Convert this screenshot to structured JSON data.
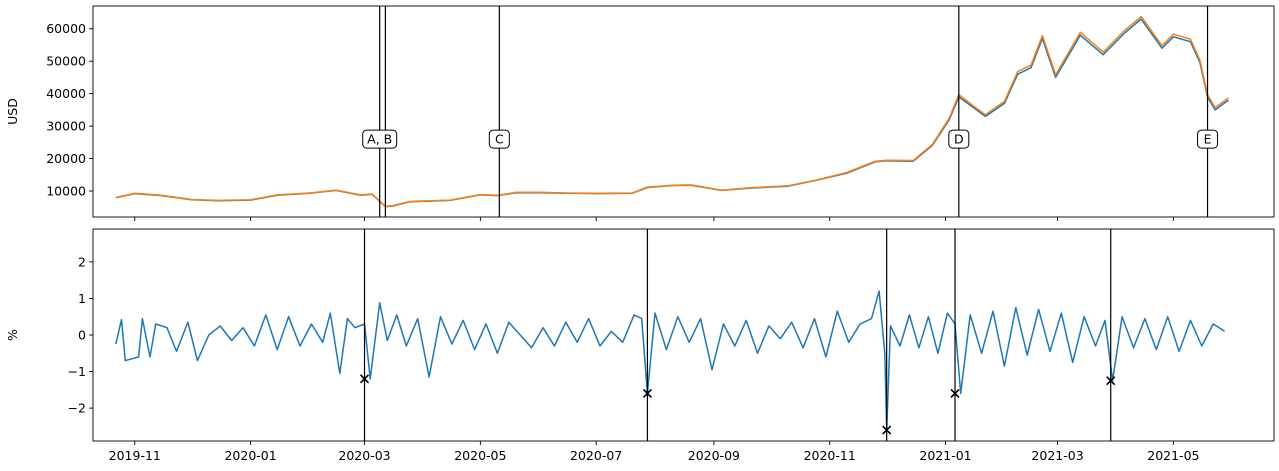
{
  "chart_data": [
    {
      "type": "line",
      "title": "",
      "xlabel": "",
      "ylabel": "USD",
      "ylim": [
        2000,
        67000
      ],
      "yticks": [
        10000,
        20000,
        30000,
        40000,
        50000,
        60000
      ],
      "ytick_labels": [
        "10000",
        "20000",
        "30000",
        "40000",
        "50000",
        "60000"
      ],
      "xlim": [
        "2019-10-10",
        "2021-06-23"
      ],
      "grid": false,
      "legend": null,
      "series": [
        {
          "color": "#1f77b4",
          "x": [
            "2019-10-22",
            "2019-11-01",
            "2019-11-15",
            "2019-12-01",
            "2019-12-15",
            "2020-01-01",
            "2020-01-15",
            "2020-02-01",
            "2020-02-15",
            "2020-02-28",
            "2020-03-05",
            "2020-03-12",
            "2020-03-16",
            "2020-03-25",
            "2020-04-15",
            "2020-05-01",
            "2020-05-10",
            "2020-05-20",
            "2020-06-01",
            "2020-06-15",
            "2020-07-01",
            "2020-07-20",
            "2020-07-28",
            "2020-08-10",
            "2020-08-20",
            "2020-09-05",
            "2020-09-20",
            "2020-10-10",
            "2020-10-25",
            "2020-11-10",
            "2020-11-25",
            "2020-12-01",
            "2020-12-15",
            "2020-12-25",
            "2021-01-03",
            "2021-01-08",
            "2021-01-15",
            "2021-01-22",
            "2021-02-01",
            "2021-02-08",
            "2021-02-15",
            "2021-02-21",
            "2021-02-28",
            "2021-03-13",
            "2021-03-25",
            "2021-04-05",
            "2021-04-14",
            "2021-04-25",
            "2021-05-01",
            "2021-05-10",
            "2021-05-15",
            "2021-05-19",
            "2021-05-23",
            "2021-05-30"
          ],
          "values": [
            7900,
            9200,
            8600,
            7300,
            7000,
            7200,
            8700,
            9300,
            10200,
            8700,
            9000,
            5200,
            5400,
            6700,
            7100,
            8800,
            8600,
            9500,
            9500,
            9300,
            9200,
            9300,
            11100,
            11700,
            11800,
            10200,
            10900,
            11500,
            13300,
            15500,
            19000,
            19300,
            19200,
            24000,
            32000,
            39000,
            36000,
            33000,
            37000,
            46000,
            48000,
            57000,
            45000,
            58000,
            52000,
            58500,
            63000,
            54000,
            57500,
            56000,
            49500,
            39000,
            35000,
            38000
          ]
        },
        {
          "color": "#ff7f0e",
          "x": [
            "2019-10-22",
            "2019-11-01",
            "2019-11-15",
            "2019-12-01",
            "2019-12-15",
            "2020-01-01",
            "2020-01-15",
            "2020-02-01",
            "2020-02-15",
            "2020-02-28",
            "2020-03-05",
            "2020-03-12",
            "2020-03-16",
            "2020-03-25",
            "2020-04-15",
            "2020-05-01",
            "2020-05-10",
            "2020-05-20",
            "2020-06-01",
            "2020-06-15",
            "2020-07-01",
            "2020-07-20",
            "2020-07-28",
            "2020-08-10",
            "2020-08-20",
            "2020-09-05",
            "2020-09-20",
            "2020-10-10",
            "2020-10-25",
            "2020-11-10",
            "2020-11-25",
            "2020-12-01",
            "2020-12-15",
            "2020-12-25",
            "2021-01-03",
            "2021-01-08",
            "2021-01-15",
            "2021-01-22",
            "2021-02-01",
            "2021-02-08",
            "2021-02-15",
            "2021-02-21",
            "2021-02-28",
            "2021-03-13",
            "2021-03-25",
            "2021-04-05",
            "2021-04-14",
            "2021-04-25",
            "2021-05-01",
            "2021-05-10",
            "2021-05-15",
            "2021-05-19",
            "2021-05-23",
            "2021-05-30"
          ],
          "values": [
            8000,
            9300,
            8700,
            7400,
            7100,
            7300,
            8800,
            9400,
            10300,
            8800,
            9100,
            5300,
            5500,
            6800,
            7200,
            8900,
            8700,
            9600,
            9600,
            9400,
            9300,
            9400,
            11200,
            11800,
            11900,
            10300,
            11000,
            11600,
            13400,
            15700,
            19200,
            19500,
            19400,
            24300,
            32500,
            39700,
            36500,
            33500,
            37600,
            46800,
            48800,
            57900,
            45800,
            58900,
            52800,
            59300,
            63800,
            54800,
            58300,
            56800,
            50200,
            39700,
            35700,
            38700
          ]
        }
      ],
      "events": [
        {
          "date": "2020-03-09",
          "label": "A, B"
        },
        {
          "date": "2020-03-12",
          "label": ""
        },
        {
          "date": "2020-05-11",
          "label": "C"
        },
        {
          "date": "2021-01-08",
          "label": "D"
        },
        {
          "date": "2021-05-19",
          "label": "E"
        }
      ],
      "event_label_y": 26000
    },
    {
      "type": "line",
      "title": "",
      "xlabel": "",
      "ylabel": "%",
      "ylim": [
        -2.9,
        2.9
      ],
      "yticks": [
        -2,
        -1,
        0,
        1,
        2
      ],
      "ytick_labels": [
        "−2",
        "−1",
        "0",
        "1",
        "2"
      ],
      "xlim": [
        "2019-10-10",
        "2021-06-23"
      ],
      "xticks": [
        "2019-11-01",
        "2020-01-01",
        "2020-03-01",
        "2020-05-01",
        "2020-07-01",
        "2020-09-01",
        "2020-11-01",
        "2021-01-01",
        "2021-03-01",
        "2021-05-01"
      ],
      "xtick_labels": [
        "2019-11",
        "2020-01",
        "2020-03",
        "2020-05",
        "2020-07",
        "2020-09",
        "2020-11",
        "2021-01",
        "2021-03",
        "2021-05"
      ],
      "grid": false,
      "legend": null,
      "series": [
        {
          "color": "#1f77b4",
          "x": [
            "2019-10-22",
            "2019-10-25",
            "2019-10-27",
            "2019-11-03",
            "2019-11-05",
            "2019-11-09",
            "2019-11-12",
            "2019-11-18",
            "2019-11-23",
            "2019-11-29",
            "2019-12-04",
            "2019-12-10",
            "2019-12-16",
            "2019-12-22",
            "2019-12-28",
            "2020-01-03",
            "2020-01-09",
            "2020-01-15",
            "2020-01-21",
            "2020-01-27",
            "2020-02-02",
            "2020-02-08",
            "2020-02-12",
            "2020-02-17",
            "2020-02-21",
            "2020-02-25",
            "2020-03-01",
            "2020-03-04",
            "2020-03-09",
            "2020-03-13",
            "2020-03-18",
            "2020-03-23",
            "2020-03-29",
            "2020-04-04",
            "2020-04-10",
            "2020-04-16",
            "2020-04-22",
            "2020-04-28",
            "2020-05-04",
            "2020-05-10",
            "2020-05-16",
            "2020-05-22",
            "2020-05-28",
            "2020-06-03",
            "2020-06-09",
            "2020-06-15",
            "2020-06-21",
            "2020-06-27",
            "2020-07-03",
            "2020-07-09",
            "2020-07-15",
            "2020-07-21",
            "2020-07-25",
            "2020-07-28",
            "2020-08-01",
            "2020-08-07",
            "2020-08-13",
            "2020-08-19",
            "2020-08-25",
            "2020-08-31",
            "2020-09-06",
            "2020-09-12",
            "2020-09-18",
            "2020-09-24",
            "2020-09-30",
            "2020-10-06",
            "2020-10-12",
            "2020-10-18",
            "2020-10-24",
            "2020-10-30",
            "2020-11-05",
            "2020-11-11",
            "2020-11-17",
            "2020-11-23",
            "2020-11-27",
            "2020-11-30",
            "2020-12-01",
            "2020-12-03",
            "2020-12-08",
            "2020-12-13",
            "2020-12-18",
            "2020-12-23",
            "2020-12-28",
            "2021-01-02",
            "2021-01-06",
            "2021-01-09",
            "2021-01-14",
            "2021-01-20",
            "2021-01-26",
            "2021-02-01",
            "2021-02-07",
            "2021-02-13",
            "2021-02-19",
            "2021-02-25",
            "2021-03-03",
            "2021-03-09",
            "2021-03-15",
            "2021-03-21",
            "2021-03-26",
            "2021-03-30",
            "2021-04-04",
            "2021-04-10",
            "2021-04-16",
            "2021-04-22",
            "2021-04-28",
            "2021-05-04",
            "2021-05-10",
            "2021-05-16",
            "2021-05-22",
            "2021-05-28"
          ],
          "values": [
            -0.25,
            0.42,
            -0.7,
            -0.6,
            0.45,
            -0.6,
            0.3,
            0.2,
            -0.45,
            0.35,
            -0.7,
            0.0,
            0.25,
            -0.15,
            0.2,
            -0.3,
            0.55,
            -0.4,
            0.5,
            -0.3,
            0.3,
            -0.2,
            0.6,
            -1.05,
            0.45,
            0.2,
            0.3,
            -1.2,
            0.88,
            -0.15,
            0.55,
            -0.3,
            0.45,
            -1.15,
            0.5,
            -0.25,
            0.4,
            -0.4,
            0.3,
            -0.5,
            0.35,
            0.0,
            -0.35,
            0.2,
            -0.3,
            0.35,
            -0.2,
            0.45,
            -0.3,
            0.1,
            -0.2,
            0.55,
            0.45,
            -1.6,
            0.6,
            -0.4,
            0.5,
            -0.2,
            0.45,
            -0.95,
            0.3,
            -0.3,
            0.4,
            -0.5,
            0.25,
            -0.1,
            0.35,
            -0.35,
            0.45,
            -0.6,
            0.65,
            -0.2,
            0.3,
            0.45,
            1.2,
            -0.5,
            -2.6,
            0.25,
            -0.3,
            0.55,
            -0.35,
            0.5,
            -0.5,
            0.6,
            0.3,
            -1.6,
            0.55,
            -0.5,
            0.65,
            -0.85,
            0.75,
            -0.55,
            0.7,
            -0.45,
            0.6,
            -0.75,
            0.5,
            -0.3,
            0.4,
            -1.25,
            0.5,
            -0.35,
            0.45,
            -0.4,
            0.5,
            -0.45,
            0.4,
            -0.3,
            0.3,
            0.1
          ]
        }
      ],
      "events": [
        {
          "date": "2020-03-01",
          "value": -1.2
        },
        {
          "date": "2020-07-28",
          "value": -1.6
        },
        {
          "date": "2020-12-01",
          "value": -2.6
        },
        {
          "date": "2021-01-06",
          "value": -1.6
        },
        {
          "date": "2021-03-29",
          "value": -1.25
        }
      ]
    }
  ]
}
